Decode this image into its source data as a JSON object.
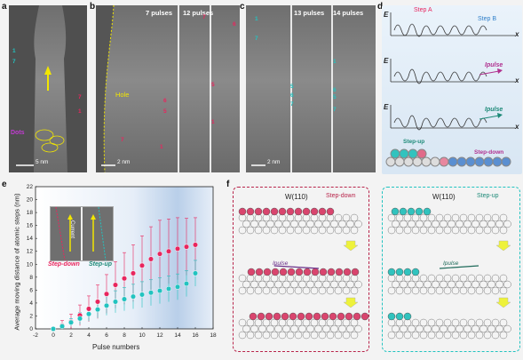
{
  "panel_letters": {
    "a": "a",
    "b": "b",
    "c": "c",
    "d": "d",
    "e": "e",
    "f": "f"
  },
  "panel_a": {
    "scale": "5 nm",
    "dots": "Dots",
    "markers": [
      "1",
      "7",
      "7",
      "1"
    ]
  },
  "panel_b": {
    "pulses_1": "7 pulses",
    "pulses_2": "12 pulses",
    "hole": "Hole",
    "scale": "2 nm",
    "markers": [
      "7",
      "6",
      "5",
      "1",
      "7",
      "6",
      "5",
      "1"
    ]
  },
  "panel_c": {
    "pulses_1": "13 pulses",
    "pulses_2": "14 pulses",
    "scale": "2 nm",
    "markers": [
      "1",
      "7",
      "5",
      "6",
      "7",
      "1",
      "6",
      "5",
      "7"
    ]
  },
  "panel_d": {
    "step_a": "Step A",
    "step_b": "Step B",
    "e_label": "E",
    "x_label": "x",
    "ipulse": "Ipulse",
    "step_up": "Step-up",
    "step_down": "Step-down"
  },
  "panel_e": {
    "ylabel": "Average moving distance of atomic steps (nm)",
    "xlabel": "Pulse numbers",
    "inset_step_down": "Step-down",
    "inset_step_up": "Step-up",
    "inset_current": "Current"
  },
  "panel_f": {
    "left_title": "W(110)",
    "left_tag": "Step-down",
    "right_title": "W(110)",
    "right_tag": "Step-up",
    "ipulse": "Ipulse"
  },
  "chart_data": {
    "type": "scatter",
    "x_ticks": [
      -2,
      0,
      2,
      4,
      6,
      8,
      10,
      12,
      14,
      16,
      18
    ],
    "y_ticks": [
      0,
      2,
      4,
      6,
      8,
      10,
      12,
      14,
      16,
      18,
      20,
      22
    ],
    "xlim": [
      -2,
      18
    ],
    "ylim": [
      0,
      22
    ],
    "series": [
      {
        "name": "Step-down",
        "color": "#e8265e",
        "x": [
          0,
          1,
          2,
          3,
          4,
          5,
          6,
          7,
          8,
          9,
          10,
          11,
          12,
          13,
          14,
          15,
          16
        ],
        "y": [
          0,
          0.5,
          1.1,
          2.1,
          3.1,
          4.2,
          5.4,
          6.8,
          7.8,
          8.6,
          9.8,
          10.8,
          11.6,
          12.0,
          12.4,
          12.7,
          13.0
        ],
        "err": [
          0.3,
          0.8,
          1.2,
          1.6,
          2.0,
          2.6,
          3.0,
          3.6,
          4.0,
          4.4,
          4.6,
          5.0,
          5.2,
          5.0,
          4.8,
          4.4,
          4.2
        ]
      },
      {
        "name": "Step-up",
        "color": "#22c3c0",
        "x": [
          0,
          1,
          2,
          3,
          4,
          5,
          6,
          7,
          8,
          9,
          10,
          11,
          12,
          13,
          14,
          15,
          16
        ],
        "y": [
          0,
          0.4,
          1.0,
          1.6,
          2.3,
          3.0,
          3.6,
          4.2,
          4.6,
          5.0,
          5.3,
          5.6,
          5.9,
          6.2,
          6.5,
          7.0,
          8.6
        ],
        "err": [
          0.2,
          0.4,
          0.6,
          0.9,
          1.1,
          1.3,
          1.5,
          1.7,
          1.8,
          1.9,
          2.0,
          2.0,
          2.0,
          2.0,
          2.0,
          2.0,
          2.0
        ]
      }
    ]
  }
}
